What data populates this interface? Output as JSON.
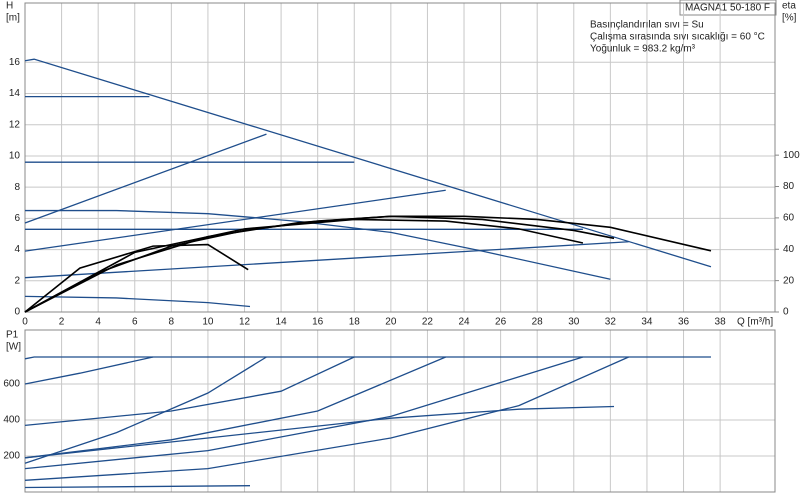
{
  "chart_data": [
    {
      "type": "line",
      "xlabel": "Q [m³/h]",
      "ylabel": "H",
      "yunit": "[m]",
      "y2label": "eta",
      "y2unit": "[%]",
      "model": "MAGNA1 50-180 F",
      "annotations": [
        "Basınçlandırılan sıvı = Su",
        "Çalışma sırasında sıvı sıcaklığı = 60 °C",
        "Yoğunluk = 983.2 kg/m³"
      ],
      "xlim": [
        0,
        41
      ],
      "xticks": [
        0,
        2,
        4,
        6,
        8,
        10,
        12,
        14,
        16,
        18,
        20,
        22,
        24,
        26,
        28,
        30,
        32,
        34,
        36,
        38
      ],
      "ylim": [
        0,
        19.8
      ],
      "yticks": [
        0,
        2,
        4,
        6,
        8,
        10,
        12,
        14,
        16
      ],
      "y2lim": [
        0,
        197
      ],
      "y2ticks": [
        0,
        20,
        40,
        60,
        80,
        100
      ],
      "grid": true,
      "series": [
        {
          "color": "#1f4e8c",
          "x": [
            0,
            0.5,
            37.5
          ],
          "values": [
            16.1,
            16.2,
            2.9
          ]
        },
        {
          "color": "#1f4e8c",
          "x": [
            0,
            6.8
          ],
          "values": [
            13.8,
            13.8
          ]
        },
        {
          "color": "#1f4e8c",
          "x": [
            0,
            18
          ],
          "values": [
            9.6,
            9.6
          ]
        },
        {
          "color": "#1f4e8c",
          "x": [
            0,
            30.5
          ],
          "values": [
            5.3,
            5.3
          ]
        },
        {
          "color": "#1f4e8c",
          "x": [
            0,
            13.2
          ],
          "values": [
            5.7,
            11.4
          ]
        },
        {
          "color": "#1f4e8c",
          "x": [
            0,
            23
          ],
          "values": [
            3.9,
            7.8
          ]
        },
        {
          "color": "#1f4e8c",
          "x": [
            0,
            33
          ],
          "values": [
            2.2,
            4.5
          ]
        },
        {
          "color": "#1f4e8c",
          "x": [
            0,
            5,
            10,
            15,
            20,
            25,
            32
          ],
          "values": [
            6.5,
            6.5,
            6.3,
            5.8,
            5.1,
            3.9,
            2.1
          ]
        },
        {
          "color": "#1f4e8c",
          "x": [
            0,
            5,
            10,
            12.3
          ],
          "values": [
            1.0,
            0.9,
            0.6,
            0.35
          ]
        },
        {
          "color": "#000000",
          "axis": "y2",
          "x": [
            0,
            4,
            8,
            12,
            16,
            20,
            24,
            28,
            32,
            37.5
          ],
          "values": [
            0,
            25,
            42,
            52,
            58,
            61,
            61,
            59,
            54,
            39
          ]
        },
        {
          "color": "#000000",
          "axis": "y2",
          "x": [
            0,
            5,
            10,
            15,
            20,
            25,
            30,
            32.2
          ],
          "values": [
            0,
            30,
            48,
            57,
            61,
            59,
            52,
            47
          ]
        },
        {
          "color": "#000000",
          "axis": "y2",
          "x": [
            0,
            3,
            7,
            10,
            12.2
          ],
          "values": [
            0,
            28,
            42,
            43,
            27
          ]
        },
        {
          "color": "#000000",
          "axis": "y2",
          "x": [
            0,
            6,
            12,
            18,
            23,
            27,
            30.5
          ],
          "values": [
            0,
            38,
            53,
            59,
            58,
            53,
            44
          ]
        }
      ]
    },
    {
      "type": "line",
      "ylabel": "P1",
      "yunit": "[W]",
      "xlim": [
        0,
        41
      ],
      "xticks": [
        0,
        2,
        4,
        6,
        8,
        10,
        12,
        14,
        16,
        18,
        20,
        22,
        24,
        26,
        28,
        30,
        32,
        34,
        36,
        38
      ],
      "ylim": [
        0,
        900
      ],
      "yticks": [
        200,
        400,
        600
      ],
      "grid": true,
      "series": [
        {
          "color": "#1f4e8c",
          "x": [
            0,
            0.5,
            37.5
          ],
          "values": [
            740,
            750,
            750
          ]
        },
        {
          "color": "#1f4e8c",
          "x": [
            0,
            3,
            7
          ],
          "values": [
            600,
            660,
            750
          ]
        },
        {
          "color": "#1f4e8c",
          "x": [
            0,
            5,
            10,
            13.2
          ],
          "values": [
            160,
            330,
            550,
            750
          ]
        },
        {
          "color": "#1f4e8c",
          "x": [
            0,
            8,
            14,
            18
          ],
          "values": [
            370,
            450,
            560,
            750
          ]
        },
        {
          "color": "#1f4e8c",
          "x": [
            0,
            8,
            16,
            23
          ],
          "values": [
            190,
            290,
            450,
            750
          ]
        },
        {
          "color": "#1f4e8c",
          "x": [
            0,
            10,
            20,
            30.5
          ],
          "values": [
            130,
            230,
            420,
            750
          ]
        },
        {
          "color": "#1f4e8c",
          "x": [
            0,
            10,
            20,
            27,
            33
          ],
          "values": [
            65,
            130,
            300,
            480,
            750
          ]
        },
        {
          "color": "#1f4e8c",
          "x": [
            0,
            10,
            20,
            27,
            32.2
          ],
          "values": [
            190,
            300,
            410,
            460,
            475
          ]
        },
        {
          "color": "#1f4e8c",
          "x": [
            0,
            12.3
          ],
          "values": [
            25,
            35
          ]
        }
      ]
    }
  ]
}
